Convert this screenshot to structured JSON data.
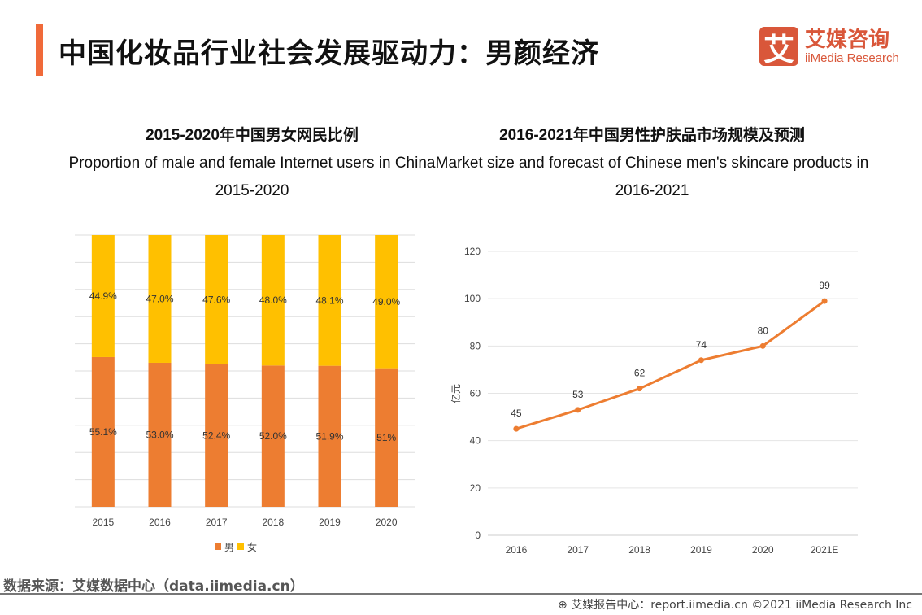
{
  "header": {
    "title": "中国化妆品行业社会发展驱动力：男颜经济",
    "logo_mark": "艾",
    "logo_cn": "艾媒咨询",
    "logo_en": "iiMedia Research"
  },
  "chart_data": [
    {
      "type": "bar",
      "stacked": true,
      "title": "2015-2020年中国男女网民比例",
      "subtitle": "Proportion of male and female Internet users in China",
      "subtitle2": "2015-2020",
      "categories": [
        "2015",
        "2016",
        "2017",
        "2018",
        "2019",
        "2020"
      ],
      "series": [
        {
          "name": "男",
          "color": "#ed7d31",
          "values": [
            55.1,
            53.0,
            52.4,
            52.0,
            51.9,
            51.0
          ],
          "labels": [
            "55.1%",
            "53.0%",
            "52.4%",
            "52.0%",
            "51.9%",
            "51%"
          ]
        },
        {
          "name": "女",
          "color": "#ffc000",
          "values": [
            44.9,
            47.0,
            47.6,
            48.0,
            48.1,
            49.0
          ],
          "labels": [
            "44.9%",
            "47.0%",
            "47.6%",
            "48.0%",
            "48.1%",
            "49.0%"
          ]
        }
      ],
      "ylim": [
        0,
        100
      ],
      "grid": true,
      "legend": "bottom"
    },
    {
      "type": "line",
      "title": "2016-2021年中国男性护肤品市场规模及预测",
      "subtitle": "Market size and forecast of Chinese men's skincare products in",
      "subtitle2": "2016-2021",
      "categories": [
        "2016",
        "2017",
        "2018",
        "2019",
        "2020",
        "2021E"
      ],
      "values": [
        45,
        53,
        62,
        74,
        80,
        99
      ],
      "color": "#ed7d31",
      "ylabel": "亿元",
      "ylim": [
        0,
        120
      ],
      "yticks": [
        0,
        20,
        40,
        60,
        80,
        100,
        120
      ],
      "grid": true
    }
  ],
  "footer": {
    "source": "数据来源：艾媒数据中心（data.iimedia.cn）",
    "report": "艾媒报告中心：report.iimedia.cn   ©2021  iiMedia Research  Inc"
  }
}
